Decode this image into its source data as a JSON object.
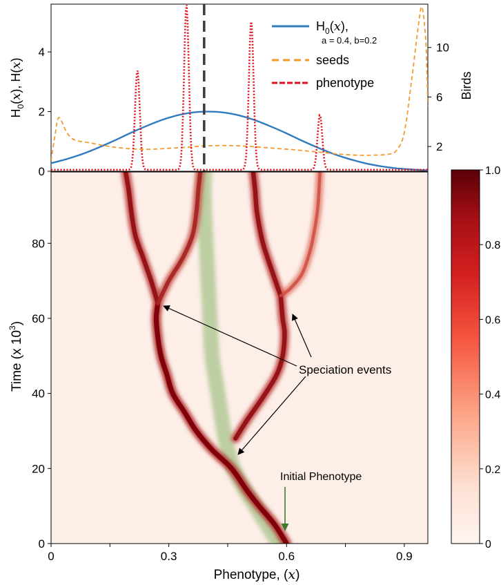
{
  "chart_data": [
    {
      "type": "line",
      "title": "",
      "xlabel": "",
      "ylabel_left": "H0(x), H(x)",
      "ylabel_left_parts": {
        "h": "H",
        "sub0": "0",
        "x": "x",
        "sep": "), H(",
        "close": ")"
      },
      "ylabel_right": "Birds",
      "xlim": [
        0,
        0.96
      ],
      "ylim_left": [
        0,
        5.6
      ],
      "ylim_right": [
        0,
        13.5
      ],
      "yticks_left": [
        0,
        2,
        4
      ],
      "yticks_right": [
        2,
        6,
        10
      ],
      "marker_x": 0.39,
      "legend": {
        "placement": "top-center",
        "h0_label_main": "H",
        "h0_label_sub": "0",
        "h0_label_var": "x",
        "h0_label_tail": "),",
        "h0_params": "a = 0.4, b=0.2",
        "seeds_label": "seeds",
        "phenotype_label": "phenotype"
      },
      "series": [
        {
          "name": "H0(x)",
          "color": "#2f7bbd",
          "style": "solid",
          "axis": "left",
          "x": [
            0,
            0.04,
            0.08,
            0.12,
            0.16,
            0.2,
            0.24,
            0.28,
            0.32,
            0.36,
            0.4,
            0.44,
            0.48,
            0.52,
            0.56,
            0.6,
            0.64,
            0.68,
            0.72,
            0.76,
            0.8,
            0.84,
            0.88,
            0.92,
            0.96
          ],
          "y": [
            0.27,
            0.41,
            0.58,
            0.79,
            1.02,
            1.27,
            1.5,
            1.71,
            1.87,
            1.97,
            2.0,
            1.97,
            1.87,
            1.71,
            1.5,
            1.27,
            1.02,
            0.79,
            0.58,
            0.41,
            0.27,
            0.17,
            0.1,
            0.06,
            0.03
          ]
        },
        {
          "name": "seeds",
          "color": "#f39a2e",
          "style": "dashed",
          "axis": "left",
          "x": [
            0,
            0.01,
            0.02,
            0.04,
            0.06,
            0.1,
            0.14,
            0.18,
            0.22,
            0.26,
            0.3,
            0.34,
            0.38,
            0.42,
            0.46,
            0.5,
            0.54,
            0.58,
            0.62,
            0.66,
            0.7,
            0.74,
            0.78,
            0.82,
            0.86,
            0.88,
            0.9,
            0.92,
            0.935,
            0.945,
            0.955,
            0.96
          ],
          "y": [
            0.35,
            1.2,
            1.8,
            1.3,
            1.05,
            0.95,
            0.85,
            0.78,
            0.74,
            0.74,
            0.77,
            0.8,
            0.84,
            0.86,
            0.86,
            0.84,
            0.8,
            0.76,
            0.72,
            0.67,
            0.62,
            0.57,
            0.54,
            0.54,
            0.57,
            0.7,
            1.3,
            3.2,
            4.8,
            5.5,
            4.3,
            2.2
          ]
        },
        {
          "name": "phenotype",
          "color": "#e0111b",
          "style": "dotted",
          "axis": "left",
          "peaks": [
            {
              "x": 0.22,
              "height": 3.35
            },
            {
              "x": 0.345,
              "height": 5.55
            },
            {
              "x": 0.51,
              "height": 5.0
            },
            {
              "x": 0.685,
              "height": 1.85
            }
          ],
          "baseline": 0.05
        }
      ]
    },
    {
      "type": "heatmap",
      "title": "",
      "xlabel_prefix": "Phenotype, (",
      "xlabel_var": "x",
      "xlabel_suffix": ")",
      "ylabel_prefix": "Time (x 10",
      "ylabel_sup": "3",
      "ylabel_suffix": ")",
      "xlim": [
        0,
        0.96
      ],
      "ylim": [
        0,
        99
      ],
      "xticks": [
        0,
        0.15,
        0.3,
        0.45,
        0.6,
        0.75,
        0.9
      ],
      "xtick_labels": [
        "0",
        "",
        "0.3",
        "",
        "0.6",
        "",
        "0.9"
      ],
      "yticks": [
        0,
        20,
        40,
        60,
        80
      ],
      "colorbar": {
        "range": [
          0,
          1
        ],
        "ticks": [
          0,
          0.2,
          0.4,
          0.6,
          0.8,
          1.0
        ],
        "tick_labels": [
          "0",
          "0.2",
          "0.4",
          "0.6",
          "0.8",
          "1.0"
        ],
        "low_color": "#fff5f0",
        "high_color": "#67000d"
      },
      "optimum_band": {
        "color": "#8ab56b",
        "points": [
          [
            0.58,
            0
          ],
          [
            0.55,
            5
          ],
          [
            0.52,
            10
          ],
          [
            0.49,
            15
          ],
          [
            0.465,
            20
          ],
          [
            0.45,
            25
          ],
          [
            0.44,
            30
          ],
          [
            0.425,
            40
          ],
          [
            0.41,
            50
          ],
          [
            0.405,
            60
          ],
          [
            0.4,
            70
          ],
          [
            0.395,
            80
          ],
          [
            0.39,
            90
          ],
          [
            0.39,
            99
          ]
        ]
      },
      "lineages": [
        {
          "intensity": 1.0,
          "points": [
            [
              0.6,
              0
            ],
            [
              0.57,
              5
            ],
            [
              0.53,
              10
            ],
            [
              0.5,
              14
            ],
            [
              0.46,
              20
            ],
            [
              0.41,
              25
            ],
            [
              0.37,
              30
            ],
            [
              0.34,
              35
            ],
            [
              0.31,
              40
            ],
            [
              0.295,
              45
            ],
            [
              0.28,
              50
            ],
            [
              0.272,
              55
            ],
            [
              0.268,
              60
            ],
            [
              0.272,
              64
            ]
          ]
        },
        {
          "intensity": 0.85,
          "points": [
            [
              0.272,
              64
            ],
            [
              0.255,
              70
            ],
            [
              0.235,
              76
            ],
            [
              0.215,
              82
            ],
            [
              0.205,
              88
            ],
            [
              0.198,
              94
            ],
            [
              0.19,
              99
            ]
          ]
        },
        {
          "intensity": 0.7,
          "points": [
            [
              0.272,
              64
            ],
            [
              0.3,
              70
            ],
            [
              0.335,
              76
            ],
            [
              0.36,
              82
            ],
            [
              0.37,
              88
            ],
            [
              0.375,
              94
            ],
            [
              0.38,
              99
            ]
          ]
        },
        {
          "intensity": 0.85,
          "points": [
            [
              0.47,
              28
            ],
            [
              0.5,
              33
            ],
            [
              0.54,
              39
            ],
            [
              0.575,
              45
            ],
            [
              0.59,
              50
            ],
            [
              0.595,
              56
            ],
            [
              0.59,
              60
            ],
            [
              0.585,
              66
            ]
          ]
        },
        {
          "intensity": 0.85,
          "points": [
            [
              0.585,
              66
            ],
            [
              0.565,
              72
            ],
            [
              0.54,
              80
            ],
            [
              0.525,
              88
            ],
            [
              0.52,
              94
            ],
            [
              0.515,
              99
            ]
          ]
        },
        {
          "intensity": 0.35,
          "points": [
            [
              0.585,
              66
            ],
            [
              0.61,
              68
            ],
            [
              0.64,
              72
            ],
            [
              0.66,
              78
            ],
            [
              0.672,
              84
            ],
            [
              0.68,
              90
            ],
            [
              0.685,
              99
            ]
          ]
        }
      ],
      "annotations": [
        {
          "text": "Speciation events",
          "x": 0.505,
          "y": 42
        },
        {
          "text": "Initial Phenotype",
          "x": 0.6,
          "y": 9
        }
      ]
    }
  ]
}
